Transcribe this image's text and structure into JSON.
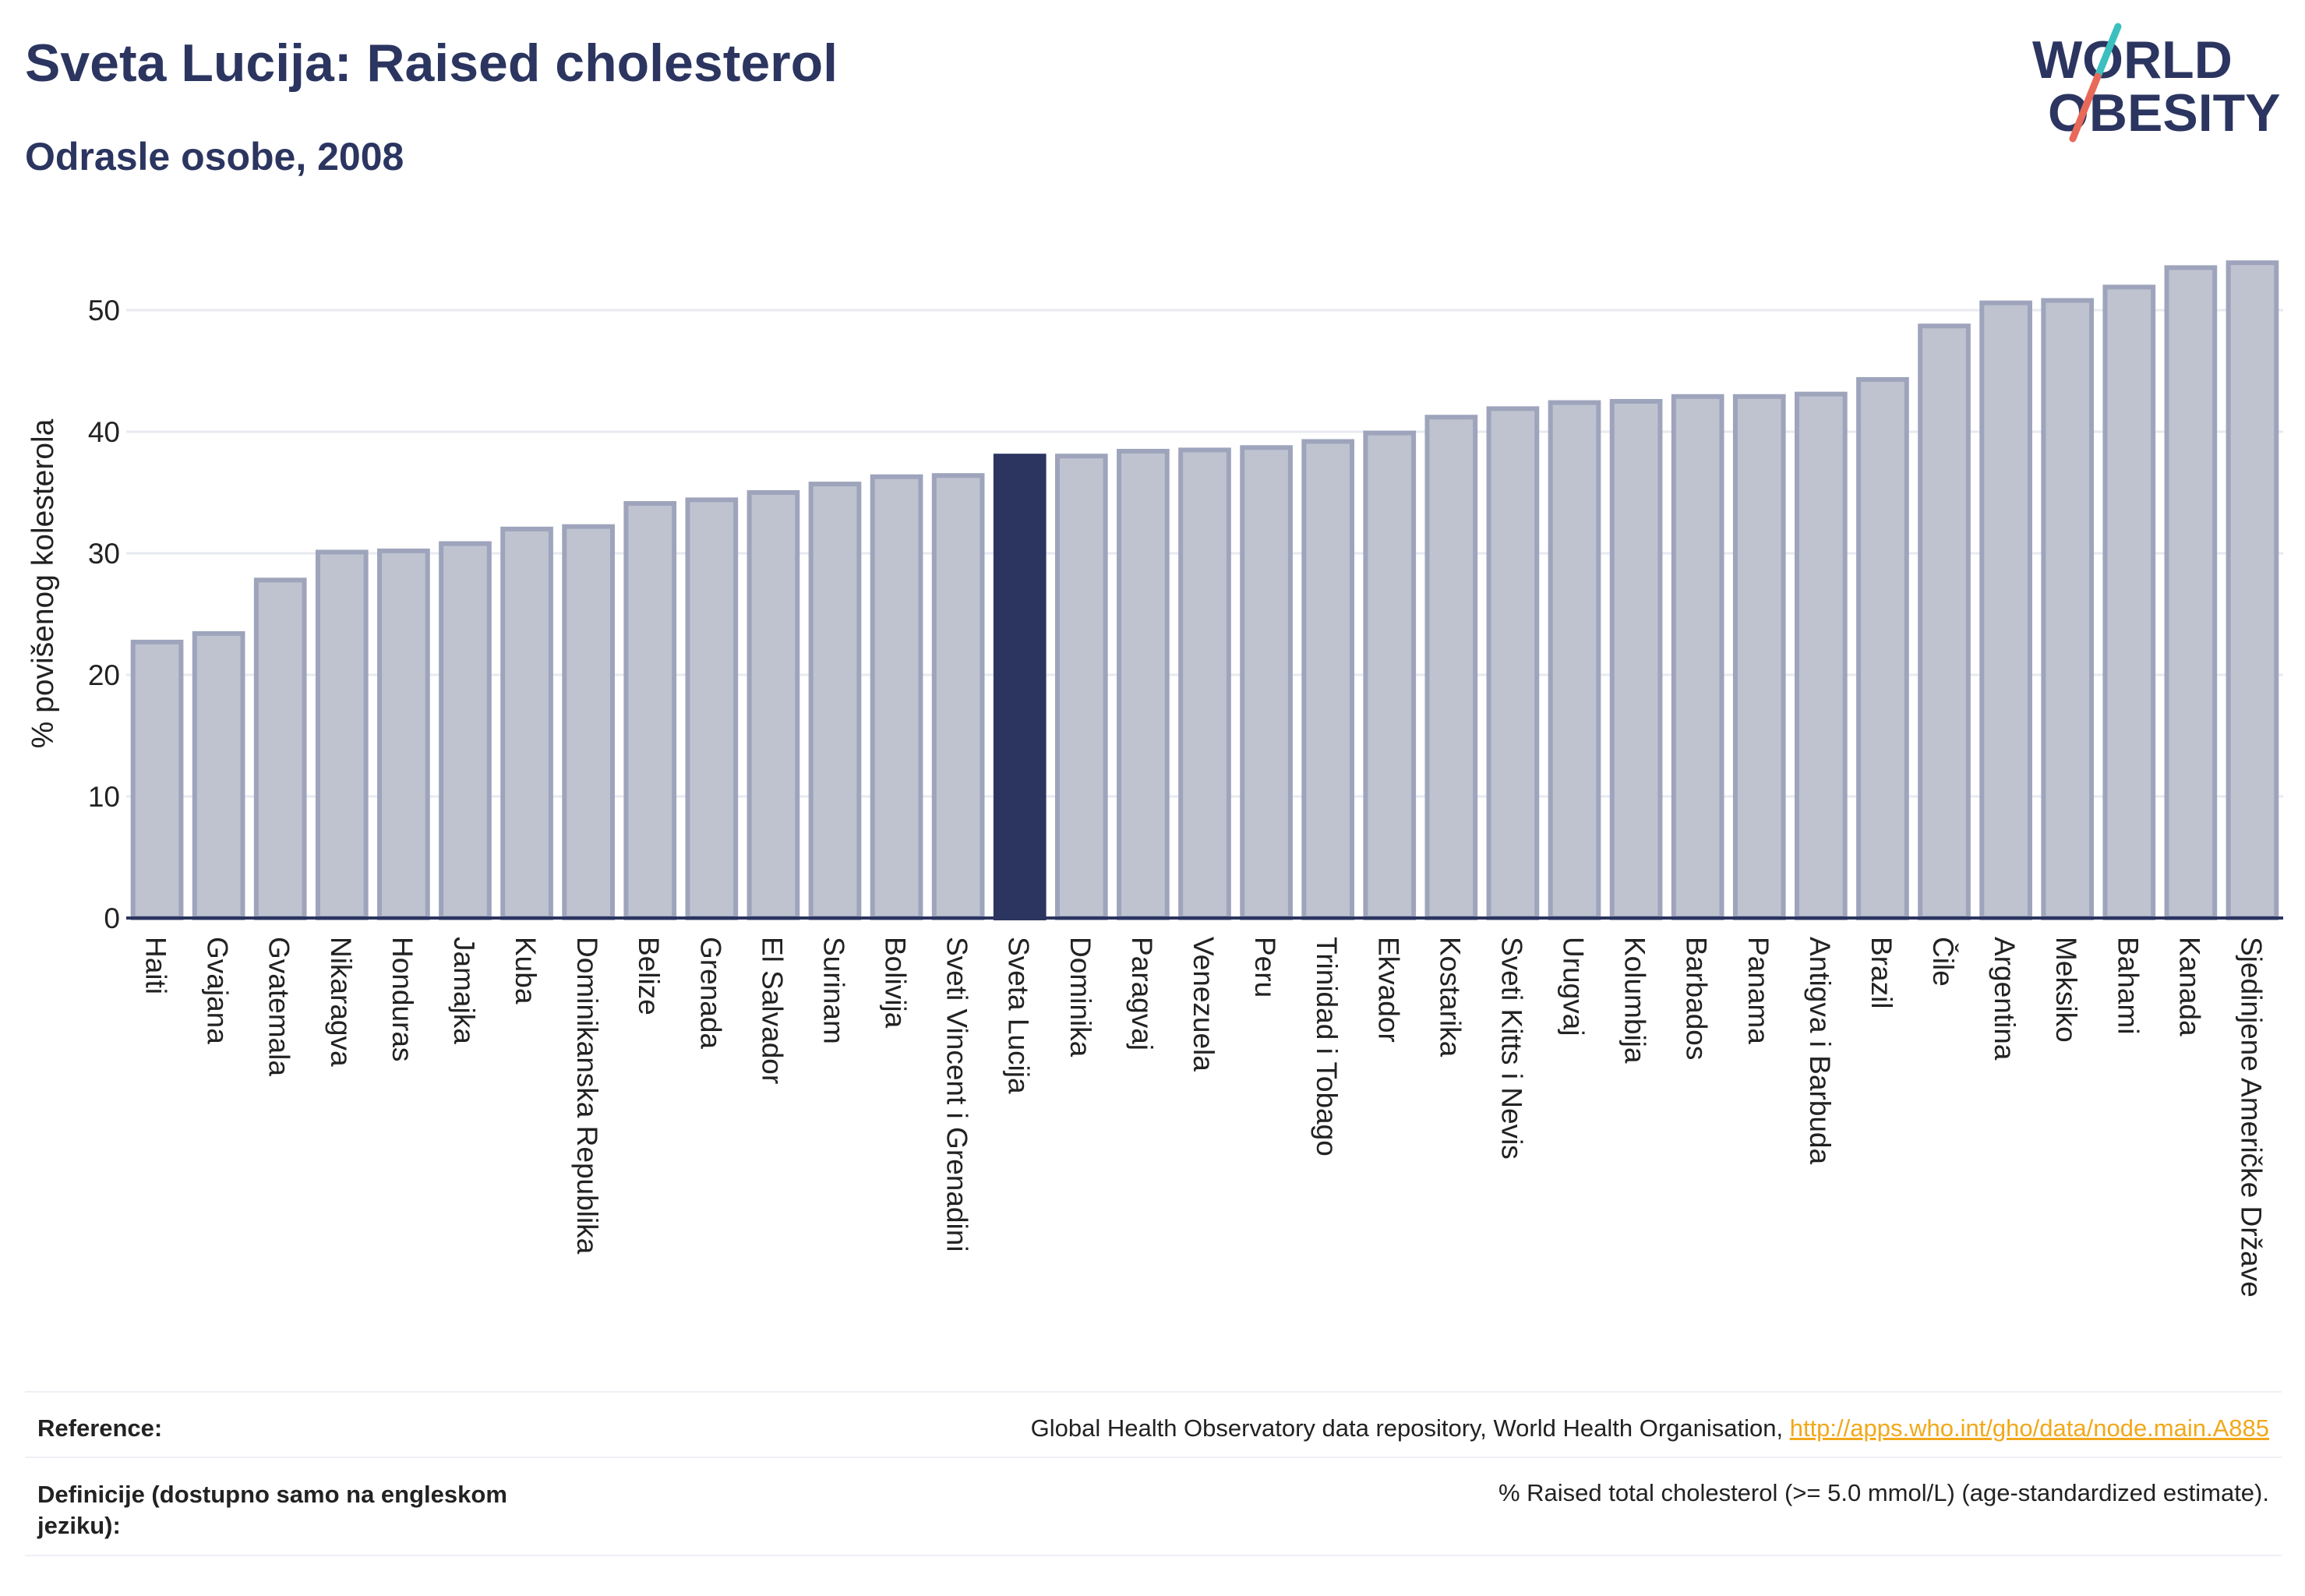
{
  "header": {
    "title": "Sveta Lucija: Raised cholesterol",
    "subtitle": "Odrasle osobe, 2008"
  },
  "logo": {
    "line1": "WORLD",
    "line2": "OBESITY",
    "colors": {
      "text": "#2b3560",
      "slash_top": "#3bbfbf",
      "slash_bottom": "#e8685a"
    }
  },
  "chart_data": {
    "type": "bar",
    "title": "Sveta Lucija: Raised cholesterol",
    "subtitle": "Odrasle osobe, 2008",
    "ylabel": "% povišenog kolesterola",
    "xlabel": "",
    "ylim": [
      0,
      55
    ],
    "yticks": [
      0,
      10,
      20,
      30,
      40,
      50
    ],
    "grid": true,
    "highlight": "Sveta Lucija",
    "colors": {
      "bar": "#bfc3d0",
      "bar_border": "#9ea4bb",
      "highlight": "#2b3560"
    },
    "categories": [
      "Haiti",
      "Gvajana",
      "Gvatemala",
      "Nikaragva",
      "Honduras",
      "Jamajka",
      "Kuba",
      "Dominikanska Republika",
      "Belize",
      "Grenada",
      "El Salvador",
      "Surinam",
      "Bolivija",
      "Sveti Vincent i Grenadini",
      "Sveta Lucija",
      "Dominika",
      "Paragvaj",
      "Venezuela",
      "Peru",
      "Trinidad i Tobago",
      "Ekvador",
      "Kostarika",
      "Sveti Kitts i Nevis",
      "Urugvaj",
      "Kolumbija",
      "Barbados",
      "Panama",
      "Antigva i Barbuda",
      "Brazil",
      "Čile",
      "Argentina",
      "Meksiko",
      "Bahami",
      "Kanada",
      "Sjedinjene Američke Države"
    ],
    "values": [
      22.7,
      23.4,
      27.8,
      30.1,
      30.2,
      30.8,
      32.0,
      32.2,
      34.1,
      34.4,
      35.0,
      35.7,
      36.3,
      36.4,
      38.0,
      38.0,
      38.4,
      38.5,
      38.7,
      39.2,
      39.9,
      41.2,
      41.9,
      42.4,
      42.5,
      42.9,
      42.9,
      43.1,
      44.3,
      48.7,
      50.6,
      50.8,
      51.9,
      53.5,
      53.9
    ]
  },
  "footer": {
    "reference_label": "Reference:",
    "reference_text": "Global Health Observatory data repository, World Health Organisation,",
    "reference_link": "http://apps.who.int/gho/data/node.main.A885",
    "definition_label_line1": "Definicije (dostupno samo na engleskom",
    "definition_label_line2": "jeziku):",
    "definition_text": "% Raised total cholesterol (>= 5.0 mmol/L) (age-standardized estimate)."
  }
}
